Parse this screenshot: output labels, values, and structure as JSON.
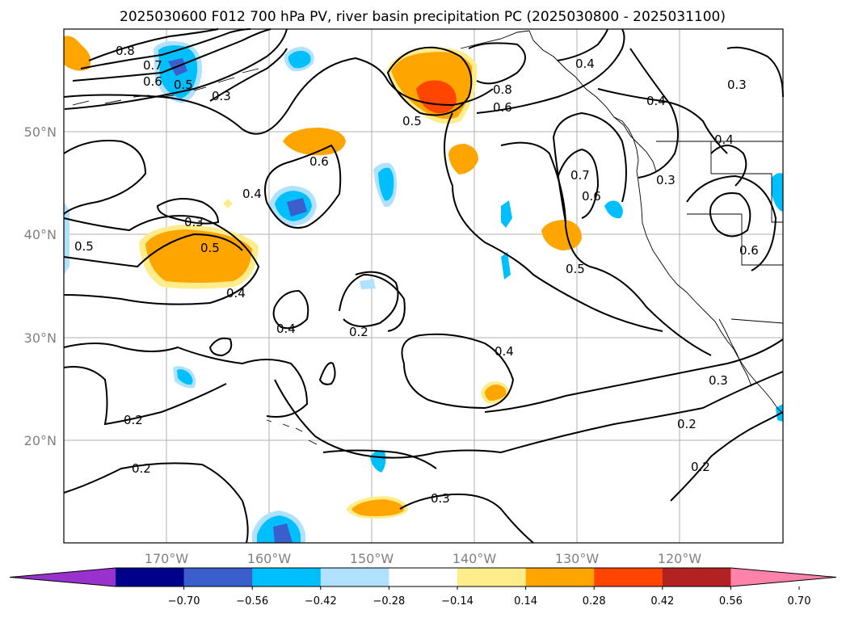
{
  "title": "2025030600 F012 700 hPa PV, river basin precipitation PC (2025030800 - 2025031100)",
  "lon_labels": [
    "170°W",
    "160°W",
    "150°W",
    "140°W",
    "130°W",
    "120°W"
  ],
  "lat_labels": [
    "50°N",
    "40°N",
    "30°N",
    "20°N"
  ],
  "colorbar": {
    "colors": [
      "#9932cc",
      "#00008b",
      "#3a5fcd",
      "#00bfff",
      "#b0e2ff",
      "#ffffff",
      "#ffec8b",
      "#ffa500",
      "#ff4500",
      "#b22222",
      "#ff82ab"
    ],
    "ticks": [
      "−0.70",
      "−0.56",
      "−0.42",
      "−0.28",
      "−0.14",
      "0.14",
      "0.28",
      "0.42",
      "0.56",
      "0.70"
    ]
  },
  "contour_labels": [
    {
      "text": "0.8"
    },
    {
      "text": "0.7"
    },
    {
      "text": "0.6"
    },
    {
      "text": "0.5"
    },
    {
      "text": "0.3"
    },
    {
      "text": "0.5"
    },
    {
      "text": "0.8"
    },
    {
      "text": "0.6"
    },
    {
      "text": "0.4"
    },
    {
      "text": "0.4"
    },
    {
      "text": "0.3"
    },
    {
      "text": "0.6"
    },
    {
      "text": "0.4"
    },
    {
      "text": "0.3"
    },
    {
      "text": "0.5"
    },
    {
      "text": "0.5"
    },
    {
      "text": "0.7"
    },
    {
      "text": "0.6"
    },
    {
      "text": "0.3"
    },
    {
      "text": "0.6"
    },
    {
      "text": "0.4"
    },
    {
      "text": "0.4"
    },
    {
      "text": "0.2"
    },
    {
      "text": "0.5"
    },
    {
      "text": "0.4"
    },
    {
      "text": "0.2"
    },
    {
      "text": "0.3"
    },
    {
      "text": "0.2"
    },
    {
      "text": "0.2"
    },
    {
      "text": "0.3"
    },
    {
      "text": "0.2"
    },
    {
      "text": "0.4"
    }
  ]
}
